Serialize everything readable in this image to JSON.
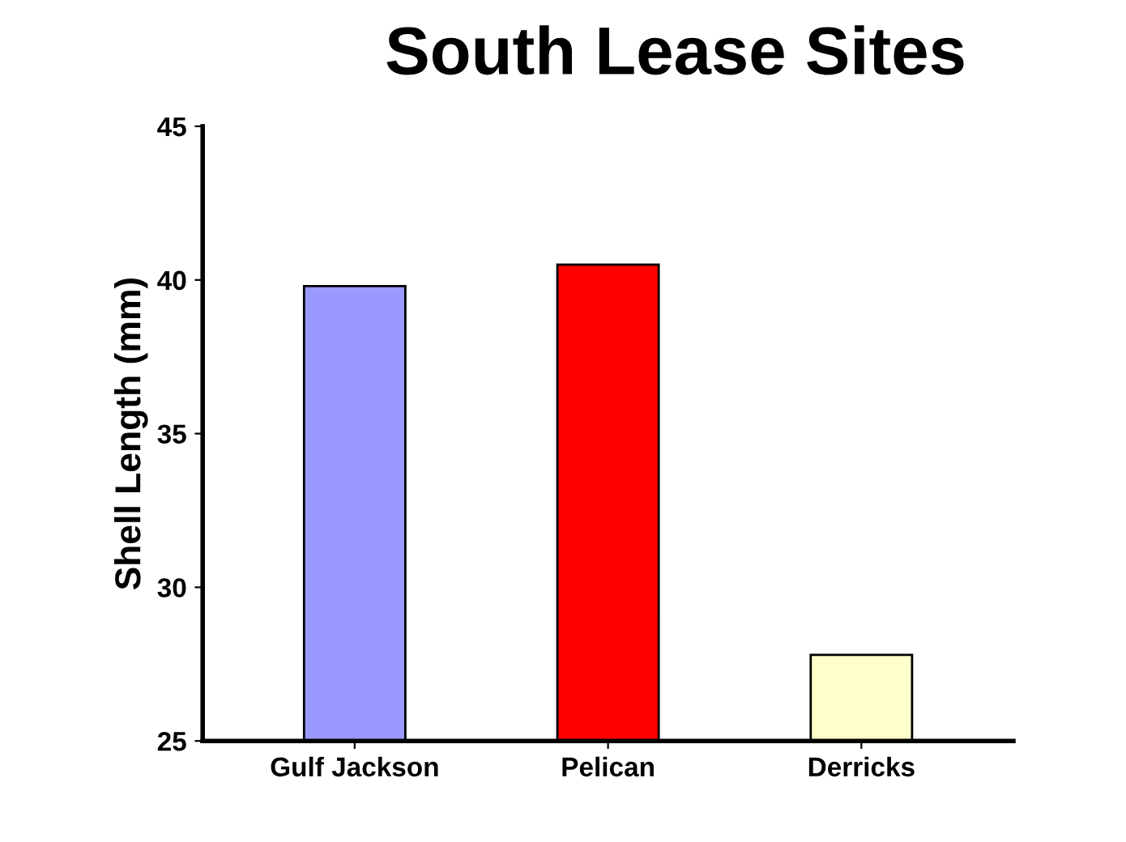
{
  "chart_data": {
    "type": "bar",
    "title": "South Lease Sites",
    "ylabel": "Shell Length (mm)",
    "categories": [
      "Gulf Jackson",
      "Pelican",
      "Derricks"
    ],
    "values": [
      39.8,
      40.5,
      27.8
    ],
    "colors": [
      "#9999ff",
      "#ff0000",
      "#ffffcc"
    ],
    "ylim": [
      25,
      45
    ],
    "yticks": [
      25,
      30,
      35,
      40,
      45
    ],
    "grid": false
  }
}
